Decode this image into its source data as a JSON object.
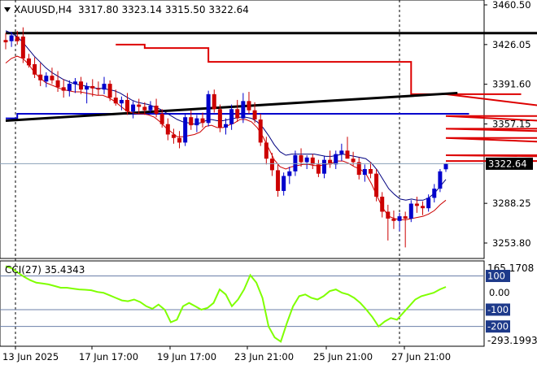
{
  "header": {
    "symbol_text": "XAUUSD,H4",
    "ohlc_text": "3317.80 3323.14 3315.50 3322.64"
  },
  "colors": {
    "bull": "#0000cc",
    "bear": "#cc0000",
    "envelope": "#dd0000",
    "ma_blue": "#000080",
    "ma_red": "#cc0000",
    "trendline": "#000000",
    "support_line": "#0000cc",
    "cci_line": "#7fff00",
    "price_tag_bg": "#000000",
    "level_tag_bg": "#1e3a8a"
  },
  "price_axis": {
    "labels": [
      "3460.50",
      "3426.05",
      "3391.60",
      "3357.15",
      "3288.25",
      "3253.80"
    ],
    "current_label": "3322.64"
  },
  "cci_panel": {
    "label": "CCI(27) 35.4343",
    "max_label": "165.1708",
    "min_label": "-293.1993",
    "levels": [
      {
        "text": "100",
        "style": "tag"
      },
      {
        "text": "0.00",
        "style": "plain"
      },
      {
        "text": "-100",
        "style": "tag"
      },
      {
        "text": "-200",
        "style": "tag"
      }
    ]
  },
  "time_axis": {
    "labels": [
      "13 Jun 2025",
      "17 Jun 17:00",
      "19 Jun 17:00",
      "23 Jun 21:00",
      "25 Jun 21:00",
      "27 Jun 21:00"
    ]
  },
  "chart_data": {
    "type": "candlestick",
    "symbol": "XAUUSD",
    "timeframe": "H4",
    "last": {
      "open": 3317.8,
      "high": 3323.14,
      "low": 3315.5,
      "close": 3322.64
    },
    "ylim": [
      3240,
      3462
    ],
    "candles": [
      {
        "o": 3430,
        "h": 3436,
        "l": 3422,
        "c": 3428
      },
      {
        "o": 3429,
        "h": 3437,
        "l": 3424,
        "c": 3434
      },
      {
        "o": 3433,
        "h": 3438,
        "l": 3426,
        "c": 3429
      },
      {
        "o": 3433,
        "h": 3441,
        "l": 3410,
        "c": 3414
      },
      {
        "o": 3414,
        "h": 3418,
        "l": 3406,
        "c": 3408
      },
      {
        "o": 3409,
        "h": 3415,
        "l": 3397,
        "c": 3400
      },
      {
        "o": 3400,
        "h": 3410,
        "l": 3390,
        "c": 3395
      },
      {
        "o": 3394,
        "h": 3402,
        "l": 3389,
        "c": 3399
      },
      {
        "o": 3399,
        "h": 3406,
        "l": 3392,
        "c": 3395
      },
      {
        "o": 3395,
        "h": 3403,
        "l": 3385,
        "c": 3389
      },
      {
        "o": 3389,
        "h": 3396,
        "l": 3380,
        "c": 3386
      },
      {
        "o": 3386,
        "h": 3395,
        "l": 3381,
        "c": 3392
      },
      {
        "o": 3392,
        "h": 3397,
        "l": 3384,
        "c": 3394
      },
      {
        "o": 3394,
        "h": 3398,
        "l": 3383,
        "c": 3387
      },
      {
        "o": 3387,
        "h": 3393,
        "l": 3375,
        "c": 3390
      },
      {
        "o": 3390,
        "h": 3396,
        "l": 3381,
        "c": 3388
      },
      {
        "o": 3388,
        "h": 3394,
        "l": 3382,
        "c": 3387
      },
      {
        "o": 3387,
        "h": 3398,
        "l": 3383,
        "c": 3392
      },
      {
        "o": 3392,
        "h": 3395,
        "l": 3377,
        "c": 3380
      },
      {
        "o": 3380,
        "h": 3387,
        "l": 3373,
        "c": 3375
      },
      {
        "o": 3375,
        "h": 3381,
        "l": 3369,
        "c": 3378
      },
      {
        "o": 3378,
        "h": 3384,
        "l": 3365,
        "c": 3368
      },
      {
        "o": 3368,
        "h": 3377,
        "l": 3362,
        "c": 3374
      },
      {
        "o": 3374,
        "h": 3379,
        "l": 3366,
        "c": 3372
      },
      {
        "o": 3372,
        "h": 3376,
        "l": 3365,
        "c": 3369
      },
      {
        "o": 3369,
        "h": 3377,
        "l": 3367,
        "c": 3373
      },
      {
        "o": 3373,
        "h": 3379,
        "l": 3363,
        "c": 3366
      },
      {
        "o": 3366,
        "h": 3370,
        "l": 3354,
        "c": 3357
      },
      {
        "o": 3357,
        "h": 3362,
        "l": 3343,
        "c": 3348
      },
      {
        "o": 3348,
        "h": 3353,
        "l": 3340,
        "c": 3345
      },
      {
        "o": 3345,
        "h": 3351,
        "l": 3336,
        "c": 3341
      },
      {
        "o": 3341,
        "h": 3366,
        "l": 3338,
        "c": 3363
      },
      {
        "o": 3363,
        "h": 3369,
        "l": 3352,
        "c": 3356
      },
      {
        "o": 3356,
        "h": 3365,
        "l": 3350,
        "c": 3362
      },
      {
        "o": 3362,
        "h": 3367,
        "l": 3354,
        "c": 3358
      },
      {
        "o": 3358,
        "h": 3386,
        "l": 3355,
        "c": 3383
      },
      {
        "o": 3383,
        "h": 3387,
        "l": 3367,
        "c": 3370
      },
      {
        "o": 3370,
        "h": 3374,
        "l": 3350,
        "c": 3354
      },
      {
        "o": 3354,
        "h": 3362,
        "l": 3348,
        "c": 3357
      },
      {
        "o": 3357,
        "h": 3374,
        "l": 3352,
        "c": 3370
      },
      {
        "o": 3370,
        "h": 3378,
        "l": 3359,
        "c": 3362
      },
      {
        "o": 3362,
        "h": 3384,
        "l": 3358,
        "c": 3377
      },
      {
        "o": 3377,
        "h": 3385,
        "l": 3366,
        "c": 3369
      },
      {
        "o": 3369,
        "h": 3376,
        "l": 3358,
        "c": 3361
      },
      {
        "o": 3361,
        "h": 3366,
        "l": 3338,
        "c": 3341
      },
      {
        "o": 3341,
        "h": 3346,
        "l": 3322,
        "c": 3327
      },
      {
        "o": 3327,
        "h": 3332,
        "l": 3312,
        "c": 3317
      },
      {
        "o": 3317,
        "h": 3322,
        "l": 3294,
        "c": 3299
      },
      {
        "o": 3299,
        "h": 3315,
        "l": 3295,
        "c": 3312
      },
      {
        "o": 3312,
        "h": 3320,
        "l": 3305,
        "c": 3316
      },
      {
        "o": 3316,
        "h": 3334,
        "l": 3312,
        "c": 3330
      },
      {
        "o": 3330,
        "h": 3336,
        "l": 3320,
        "c": 3324
      },
      {
        "o": 3324,
        "h": 3330,
        "l": 3318,
        "c": 3328
      },
      {
        "o": 3328,
        "h": 3331,
        "l": 3318,
        "c": 3322
      },
      {
        "o": 3322,
        "h": 3326,
        "l": 3311,
        "c": 3314
      },
      {
        "o": 3314,
        "h": 3329,
        "l": 3310,
        "c": 3326
      },
      {
        "o": 3326,
        "h": 3334,
        "l": 3319,
        "c": 3322
      },
      {
        "o": 3322,
        "h": 3334,
        "l": 3318,
        "c": 3331
      },
      {
        "o": 3331,
        "h": 3340,
        "l": 3325,
        "c": 3334
      },
      {
        "o": 3334,
        "h": 3346,
        "l": 3329,
        "c": 3327
      },
      {
        "o": 3327,
        "h": 3333,
        "l": 3321,
        "c": 3324
      },
      {
        "o": 3324,
        "h": 3328,
        "l": 3309,
        "c": 3313
      },
      {
        "o": 3313,
        "h": 3322,
        "l": 3307,
        "c": 3318
      },
      {
        "o": 3318,
        "h": 3324,
        "l": 3310,
        "c": 3314
      },
      {
        "o": 3314,
        "h": 3318,
        "l": 3290,
        "c": 3294
      },
      {
        "o": 3294,
        "h": 3298,
        "l": 3276,
        "c": 3281
      },
      {
        "o": 3281,
        "h": 3287,
        "l": 3256,
        "c": 3275
      },
      {
        "o": 3275,
        "h": 3282,
        "l": 3266,
        "c": 3273
      },
      {
        "o": 3273,
        "h": 3280,
        "l": 3264,
        "c": 3277
      },
      {
        "o": 3277,
        "h": 3281,
        "l": 3250,
        "c": 3275
      },
      {
        "o": 3275,
        "h": 3291,
        "l": 3272,
        "c": 3288
      },
      {
        "o": 3288,
        "h": 3294,
        "l": 3280,
        "c": 3286
      },
      {
        "o": 3286,
        "h": 3290,
        "l": 3278,
        "c": 3284
      },
      {
        "o": 3284,
        "h": 3296,
        "l": 3281,
        "c": 3293
      },
      {
        "o": 3293,
        "h": 3305,
        "l": 3289,
        "c": 3301
      },
      {
        "o": 3301,
        "h": 3318,
        "l": 3298,
        "c": 3316
      },
      {
        "o": 3317.8,
        "h": 3323.14,
        "l": 3315.5,
        "c": 3322.64
      }
    ],
    "ma_blue": [
      3438,
      3436,
      3433,
      3428,
      3422,
      3416,
      3411,
      3406,
      3402,
      3399,
      3396,
      3394,
      3392,
      3391,
      3390,
      3389,
      3388,
      3388,
      3387,
      3386,
      3384,
      3381,
      3378,
      3376,
      3375,
      3374,
      3372,
      3370,
      3367,
      3364,
      3361,
      3359,
      3358,
      3357,
      3358,
      3360,
      3361,
      3360,
      3360,
      3361,
      3362,
      3363,
      3363,
      3362,
      3359,
      3354,
      3347,
      3339,
      3333,
      3330,
      3331,
      3331,
      3331,
      3331,
      3331,
      3330,
      3329,
      3329,
      3330,
      3331,
      3330,
      3329,
      3328,
      3327,
      3323,
      3317,
      3309,
      3301,
      3296,
      3292,
      3291,
      3292,
      3291,
      3291,
      3293,
      3297,
      3303,
      3309
    ],
    "ma_red": [
      3410,
      3414,
      3416,
      3414,
      3409,
      3402,
      3397,
      3393,
      3391,
      3389,
      3387,
      3386,
      3385,
      3385,
      3384,
      3383,
      3382,
      3382,
      3380,
      3377,
      3373,
      3369,
      3367,
      3366,
      3366,
      3365,
      3363,
      3359,
      3354,
      3350,
      3346,
      3346,
      3347,
      3348,
      3350,
      3355,
      3356,
      3354,
      3354,
      3356,
      3358,
      3361,
      3361,
      3359,
      3354,
      3346,
      3336,
      3326,
      3320,
      3318,
      3320,
      3321,
      3322,
      3322,
      3321,
      3321,
      3322,
      3323,
      3325,
      3325,
      3323,
      3320,
      3318,
      3314,
      3305,
      3294,
      3284,
      3277,
      3275,
      3274,
      3274,
      3275,
      3276,
      3277,
      3279,
      3282,
      3287,
      3291
    ],
    "envelope_segments": [
      {
        "from": 19,
        "to": 24,
        "level": 3426
      },
      {
        "from": 24,
        "to": 35,
        "level": 3423
      },
      {
        "from": 35,
        "to": 70,
        "level": 3411
      },
      {
        "from": 70,
        "to": 89,
        "level": 3383
      },
      {
        "from": 89,
        "to": 107,
        "level": 3383
      },
      {
        "from": 107,
        "to": 120,
        "level": 3364
      },
      {
        "from": 120,
        "to": 137,
        "level": 3353
      },
      {
        "from": 137,
        "to": 150,
        "level": 3345
      },
      {
        "from": 150,
        "to": 167,
        "level": 3330
      },
      {
        "from": 167,
        "to": 180,
        "level": 3325
      }
    ],
    "trendlines": [
      {
        "name": "support",
        "from": [
          0,
          3360
        ],
        "to": [
          78,
          3384
        ]
      },
      {
        "name": "resistance",
        "from": [
          0,
          3436
        ],
        "to": [
          110,
          3436
        ]
      }
    ],
    "blue_support": [
      {
        "x": 0,
        "level": 3362
      },
      {
        "x": 2,
        "level": 3366
      },
      {
        "x": 80,
        "level": 3366
      }
    ],
    "cci": {
      "name": "CCI(27)",
      "current": 35.4343,
      "range": [
        -293.1993,
        165.1708
      ],
      "levels": [
        100,
        0,
        -100,
        -200
      ],
      "values": [
        158,
        145,
        120,
        95,
        75,
        60,
        55,
        50,
        40,
        30,
        30,
        25,
        20,
        18,
        15,
        5,
        0,
        -15,
        -30,
        -45,
        -50,
        -40,
        -55,
        -80,
        -95,
        -70,
        -100,
        -175,
        -160,
        -80,
        -60,
        -80,
        -100,
        -90,
        -60,
        20,
        -10,
        -80,
        -40,
        20,
        105,
        60,
        -30,
        -200,
        -265,
        -290,
        -180,
        -80,
        -20,
        -10,
        -30,
        -40,
        -20,
        10,
        20,
        0,
        -10,
        -30,
        -60,
        -100,
        -145,
        -200,
        -170,
        -150,
        -160,
        -120,
        -80,
        -40,
        -20,
        -10,
        0,
        20,
        35
      ]
    }
  }
}
